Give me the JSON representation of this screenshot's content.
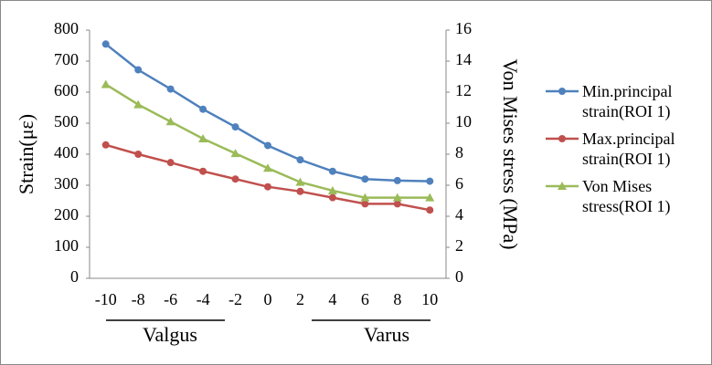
{
  "chart_data": {
    "type": "line",
    "categories": [
      "-10",
      "-8",
      "-6",
      "-4",
      "-2",
      "0",
      "2",
      "4",
      "6",
      "8",
      "10"
    ],
    "y_label": "Strain(με)",
    "y2_label": "Von Mises  stress  (MPa)",
    "ylim": [
      0,
      800
    ],
    "yticks": [
      0,
      100,
      200,
      300,
      400,
      500,
      600,
      700,
      800
    ],
    "y2lim": [
      0,
      16
    ],
    "y2ticks": [
      0,
      2,
      4,
      6,
      8,
      10,
      12,
      14,
      16
    ],
    "annotations": [
      "Valgus",
      "Varus"
    ],
    "series": [
      {
        "name": "Min.principal strain(ROI 1)",
        "color": "#4f81bd",
        "marker": "circle",
        "values": [
          755,
          672,
          610,
          545,
          488,
          428,
          382,
          345,
          320,
          315,
          313
        ]
      },
      {
        "name": "Max.principal strain(ROI 1)",
        "color": "#c0504d",
        "marker": "circle",
        "values": [
          430,
          400,
          373,
          345,
          320,
          295,
          280,
          260,
          240,
          240,
          220
        ]
      },
      {
        "name": "Von Mises stress(ROI 1)",
        "color": "#9bbb59",
        "marker": "triangle",
        "axis": "y2",
        "values": [
          12.5,
          11.2,
          10.1,
          9.0,
          8.05,
          7.1,
          6.2,
          5.65,
          5.2,
          5.2,
          5.2
        ]
      }
    ]
  }
}
